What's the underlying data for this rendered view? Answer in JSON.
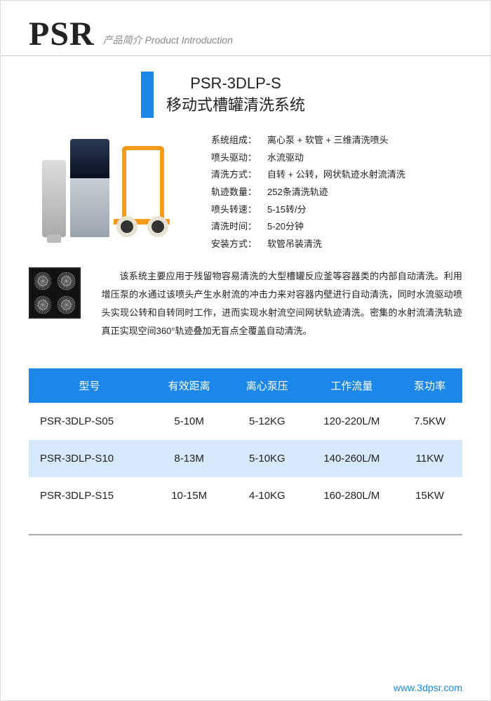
{
  "header": {
    "logo": "PSR",
    "tagline": "产品简介 Product Introduction"
  },
  "title": {
    "model": "PSR-3DLP-S",
    "name": "移动式槽罐清洗系统",
    "bar_color": "#1c87e8",
    "title_fontsize": 22
  },
  "specs": [
    {
      "label": "系统组成：",
      "value": "离心泵 + 软管 + 三维清洗喷头"
    },
    {
      "label": "喷头驱动：",
      "value": "水流驱动"
    },
    {
      "label": "清洗方式：",
      "value": "自转 + 公转，网状轨迹水射流清洗"
    },
    {
      "label": "轨迹数量：",
      "value": "252条清洗轨迹"
    },
    {
      "label": "喷头转速：",
      "value": "5-15转/分"
    },
    {
      "label": "清洗时间：",
      "value": "5-20分钟"
    },
    {
      "label": "安装方式：",
      "value": "软管吊装清洗"
    }
  ],
  "description": "该系统主要应用于残留物容易清洗的大型槽罐反应釜等容器类的内部自动清洗。利用增压泵的水通过该喷头产生水射流的冲击力来对容器内壁进行自动清洗，同时水流驱动喷头实现公转和自转同时工作，进而实现水射流空间网状轨迹清洗。密集的水射流清洗轨迹真正实现空间360°轨迹叠加无盲点全覆盖自动清洗。",
  "table": {
    "type": "table",
    "header_bg": "#1c87e8",
    "header_fg": "#ffffff",
    "alt_row_bg": "#d5e9fa",
    "header_fontsize": 15,
    "cell_fontsize": 15,
    "columns": [
      "型号",
      "有效距离",
      "离心泵压",
      "工作流量",
      "泵功率"
    ],
    "col_widths_pct": [
      28,
      18,
      18,
      21,
      15
    ],
    "rows": [
      [
        "PSR-3DLP-S05",
        "5-10M",
        "5-12KG",
        "120-220L/M",
        "7.5KW"
      ],
      [
        "PSR-3DLP-S10",
        "8-13M",
        "5-10KG",
        "140-260L/M",
        "11KW"
      ],
      [
        "PSR-3DLP-S15",
        "10-15M",
        "4-10KG",
        "160-280L/M",
        "15KW"
      ]
    ]
  },
  "footer": {
    "url": "www.3dpsr.com",
    "color": "#1c87e8"
  },
  "colors": {
    "brand_blue": "#1c87e8",
    "text": "#222222",
    "muted": "#888888",
    "cart_orange": "#f59b1c",
    "background": "#ffffff"
  }
}
